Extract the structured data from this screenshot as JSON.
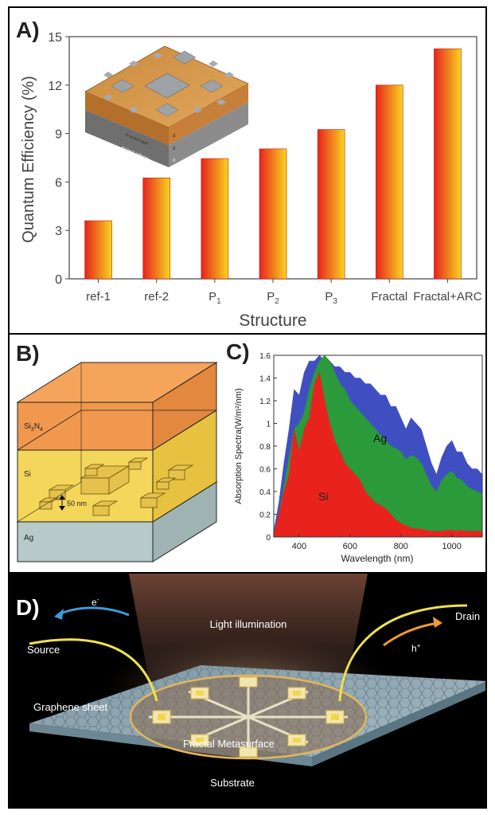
{
  "figure": {
    "panel_labels": [
      "A)",
      "B)",
      "C)",
      "D)"
    ]
  },
  "chart_data": [
    {
      "panel": "A)",
      "type": "bar",
      "xlabel": "Structure",
      "ylabel": "Quantum Efficiency (%)",
      "ylim": [
        0,
        15
      ],
      "yticks": [
        0,
        3,
        6,
        9,
        12,
        15
      ],
      "categories": [
        "ref-1",
        "ref-2",
        "P1",
        "P2",
        "P3",
        "Fractal",
        "Fractal+ARC"
      ],
      "category_labels": [
        {
          "main": "ref-1",
          "sub": ""
        },
        {
          "main": "ref-2",
          "sub": ""
        },
        {
          "main": "P",
          "sub": "1"
        },
        {
          "main": "P",
          "sub": "2"
        },
        {
          "main": "P",
          "sub": "3"
        },
        {
          "main": "Fractal",
          "sub": ""
        },
        {
          "main": "Fractal+ARC",
          "sub": ""
        }
      ],
      "values": [
        3.6,
        6.25,
        7.45,
        8.05,
        9.25,
        12.0,
        14.25
      ],
      "bar_gradient": [
        "#e8231d",
        "#f7d51f"
      ],
      "inset_labels": [
        "Si active layer",
        "Ag back reflector",
        "d",
        "d",
        "d"
      ]
    },
    {
      "panel": "C)",
      "type": "area",
      "xlabel": "Wavelength (nm)",
      "ylabel": "Absorption Spectra(W/m²/nm)",
      "xlim": [
        300,
        1120
      ],
      "ylim": [
        0,
        1.6
      ],
      "xticks": [
        400,
        600,
        800,
        1000
      ],
      "yticks": [
        0,
        0.2,
        0.4,
        0.6,
        0.8,
        1,
        1.2,
        1.4,
        1.6
      ],
      "series": [
        {
          "name": "",
          "color": "#3f4fc1",
          "x": [
            300,
            320,
            340,
            360,
            380,
            400,
            420,
            440,
            460,
            480,
            500,
            520,
            540,
            560,
            580,
            600,
            620,
            640,
            660,
            680,
            700,
            720,
            740,
            760,
            780,
            800,
            820,
            840,
            860,
            880,
            900,
            920,
            940,
            960,
            980,
            1000,
            1020,
            1040,
            1060,
            1080,
            1100,
            1120
          ],
          "values": [
            0.05,
            0.3,
            0.65,
            0.95,
            1.3,
            1.25,
            1.45,
            1.55,
            1.55,
            1.6,
            1.55,
            1.55,
            1.5,
            1.5,
            1.45,
            1.45,
            1.4,
            1.4,
            1.35,
            1.35,
            1.3,
            1.25,
            1.25,
            1.15,
            1.15,
            1.05,
            0.95,
            1.05,
            1.0,
            0.95,
            0.8,
            0.65,
            0.55,
            0.7,
            0.8,
            0.85,
            0.75,
            0.75,
            0.65,
            0.6,
            0.6,
            0.55
          ]
        },
        {
          "name": "Ag",
          "color": "#2a9a3b",
          "x": [
            300,
            320,
            340,
            360,
            380,
            400,
            420,
            440,
            460,
            480,
            500,
            520,
            540,
            560,
            580,
            600,
            620,
            640,
            660,
            680,
            700,
            720,
            740,
            760,
            780,
            800,
            820,
            840,
            860,
            880,
            900,
            920,
            940,
            960,
            980,
            1000,
            1020,
            1040,
            1060,
            1080,
            1100,
            1120
          ],
          "values": [
            0.03,
            0.2,
            0.45,
            0.7,
            0.95,
            1.0,
            1.1,
            1.3,
            1.45,
            1.55,
            1.6,
            1.55,
            1.45,
            1.35,
            1.3,
            1.2,
            1.15,
            1.1,
            1.05,
            1.0,
            0.95,
            0.9,
            0.85,
            0.8,
            0.78,
            0.75,
            0.68,
            0.72,
            0.7,
            0.65,
            0.55,
            0.45,
            0.4,
            0.5,
            0.55,
            0.58,
            0.52,
            0.5,
            0.45,
            0.42,
            0.4,
            0.38
          ]
        },
        {
          "name": "Si",
          "color": "#e8231d",
          "x": [
            300,
            320,
            340,
            360,
            380,
            400,
            420,
            440,
            460,
            480,
            500,
            520,
            540,
            560,
            580,
            600,
            620,
            640,
            660,
            680,
            700,
            720,
            740,
            760,
            780,
            800,
            820,
            840,
            860,
            880,
            900,
            920,
            940,
            960,
            980,
            1000,
            1020,
            1040,
            1060,
            1080,
            1100,
            1120
          ],
          "values": [
            0.02,
            0.2,
            0.4,
            0.55,
            0.95,
            0.75,
            0.95,
            1.05,
            1.35,
            1.45,
            1.2,
            1.0,
            0.85,
            0.75,
            0.65,
            0.6,
            0.55,
            0.5,
            0.4,
            0.35,
            0.3,
            0.28,
            0.25,
            0.2,
            0.15,
            0.12,
            0.1,
            0.08,
            0.07,
            0.07,
            0.06,
            0.05,
            0.05,
            0.05,
            0.06,
            0.06,
            0.05,
            0.06,
            0.05,
            0.05,
            0.05,
            0.05
          ]
        }
      ],
      "annotations": [
        "Ag",
        "Si"
      ]
    }
  ],
  "panelB": {
    "layers": [
      "Si3N4",
      "Si",
      "Ag"
    ],
    "layer_labels": {
      "si3n4_main": "Si",
      "si3n4_sub1": "3",
      "si3n4_mid": "N",
      "si3n4_sub2": "4",
      "si": "Si",
      "ag": "Ag"
    },
    "dimension": "50 nm",
    "colors": {
      "si3n4": "#e97f2e",
      "si": "#f2cf46",
      "ag": "#b7c9c8"
    }
  },
  "panelD": {
    "labels": {
      "light": "Light illumination",
      "source": "Source",
      "drain": "Drain",
      "electron": "e",
      "electron_sup": "-",
      "hole": "h",
      "hole_sup": "+",
      "graphene": "Graphene sheet",
      "metasurface": "Fractal Metasurface",
      "substrate": "Substrate"
    },
    "colors": {
      "electron_arrow": "#3c9bd6",
      "hole_arrow": "#f29a2e",
      "wire": "#f1e24a"
    }
  }
}
